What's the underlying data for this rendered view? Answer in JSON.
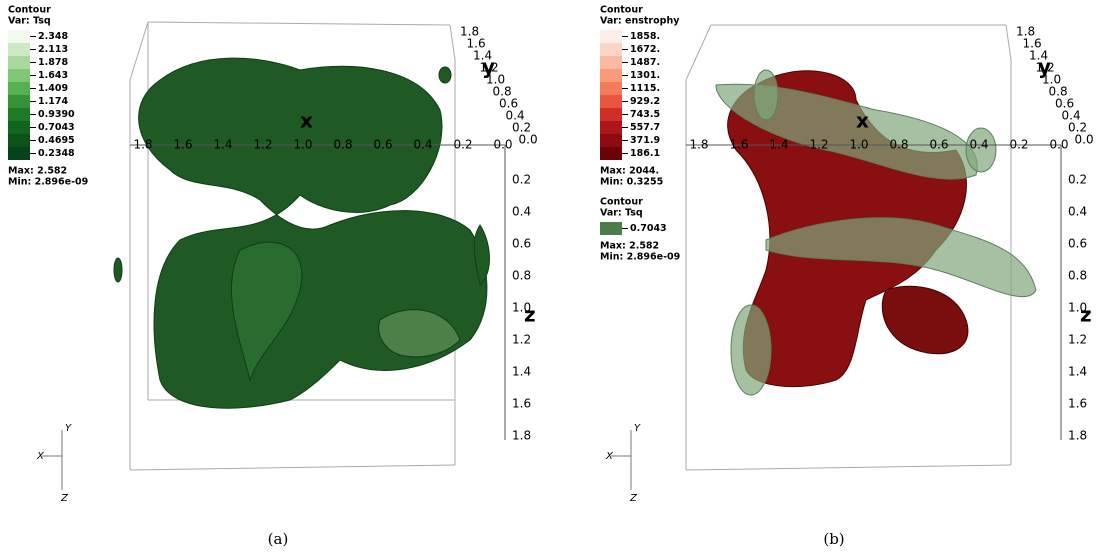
{
  "panels": [
    {
      "legends": [
        {
          "title": "Contour",
          "var": "Var: Tsq",
          "levels": [
            "2.348",
            "2.113",
            "1.878",
            "1.643",
            "1.409",
            "1.174",
            "0.9390",
            "0.7043",
            "0.4695",
            "0.2348"
          ],
          "max": "Max: 2.582",
          "min": "Min: 2.896e-09"
        }
      ],
      "axes": {
        "x_label": "x",
        "x_ticks": [
          "1.8",
          "1.6",
          "1.4",
          "1.2",
          "1.0",
          "0.8",
          "0.6",
          "0.4",
          "0.2",
          "0.0"
        ],
        "y_label": "y",
        "y_ticks": [
          "1.8",
          "1.6",
          "1.4",
          "1.2",
          "1.0",
          "0.8",
          "0.6",
          "0.4",
          "0.2",
          "0.0"
        ],
        "z_label": "z",
        "z_ticks": [
          "0.2",
          "0.4",
          "0.6",
          "0.8",
          "1.0",
          "1.2",
          "1.4",
          "1.6",
          "1.8"
        ]
      },
      "triad": {
        "x": "X",
        "y": "Y",
        "z": "Z"
      },
      "caption": "(a)"
    },
    {
      "legends": [
        {
          "title": "Contour",
          "var": "Var: enstrophy",
          "levels": [
            "1858.",
            "1672.",
            "1487.",
            "1301.",
            "1115.",
            "929.2",
            "743.5",
            "557.7",
            "371.9",
            "186.1"
          ],
          "max": "Max: 2044.",
          "min": "Min: 0.3255"
        },
        {
          "title": "Contour",
          "var": "Var: Tsq",
          "levels": [
            "0.7043"
          ],
          "max": "Max: 2.582",
          "min": "Min: 2.896e-09"
        }
      ],
      "axes": {
        "x_label": "x",
        "x_ticks": [
          "1.8",
          "1.6",
          "1.4",
          "1.2",
          "1.0",
          "0.8",
          "0.6",
          "0.4",
          "0.2",
          "0.0"
        ],
        "y_label": "y",
        "y_ticks": [
          "1.8",
          "1.6",
          "1.4",
          "1.2",
          "1.0",
          "0.8",
          "0.6",
          "0.4",
          "0.2",
          "0.0"
        ],
        "z_label": "z",
        "z_ticks": [
          "0.2",
          "0.4",
          "0.6",
          "0.8",
          "1.0",
          "1.2",
          "1.4",
          "1.6",
          "1.8"
        ]
      },
      "triad": {
        "x": "X",
        "y": "Y",
        "z": "Z"
      },
      "caption": "(b)"
    }
  ]
}
